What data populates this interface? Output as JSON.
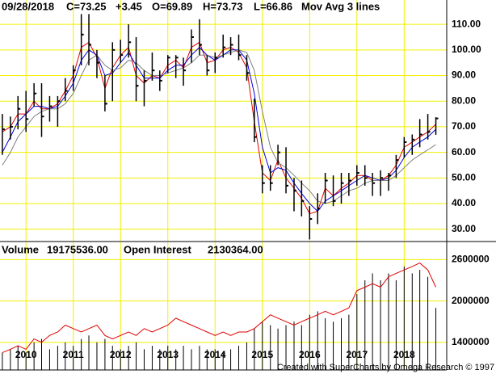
{
  "chart_data": [
    {
      "type": "hlc",
      "date": "09/28/2018",
      "close_label": "C=73.25",
      "change": "+3.45",
      "open_label": "O=69.89",
      "high_label": "H=73.73",
      "low_label": "L=66.86",
      "study": "Mov Avg 3 lines",
      "change_color": "#00c000",
      "bar_color": "#000000",
      "grid": true,
      "grid_color": "#f0f000",
      "x": [
        2009.5,
        2009.67,
        2009.83,
        2010,
        2010.17,
        2010.33,
        2010.5,
        2010.67,
        2010.83,
        2011,
        2011.17,
        2011.33,
        2011.5,
        2011.67,
        2011.83,
        2012,
        2012.17,
        2012.33,
        2012.5,
        2012.67,
        2012.83,
        2013,
        2013.17,
        2013.33,
        2013.5,
        2013.67,
        2013.83,
        2014,
        2014.17,
        2014.33,
        2014.5,
        2014.67,
        2014.83,
        2015,
        2015.17,
        2015.33,
        2015.5,
        2015.67,
        2015.83,
        2016,
        2016.17,
        2016.33,
        2016.5,
        2016.67,
        2016.83,
        2017,
        2017.17,
        2017.33,
        2017.5,
        2017.67,
        2017.83,
        2018,
        2018.17,
        2018.33,
        2018.5,
        2018.67
      ],
      "high": [
        75,
        74,
        82,
        84,
        87,
        87,
        82,
        82,
        89,
        94,
        114,
        114,
        100,
        90,
        103,
        104,
        110,
        105,
        92,
        99,
        92,
        98,
        98,
        97,
        108,
        112,
        98,
        99,
        106,
        105,
        106,
        98,
        81,
        55,
        55,
        63,
        62,
        50,
        49,
        39,
        44,
        52,
        51,
        52,
        52,
        55,
        55,
        52,
        53,
        52,
        59,
        66,
        67,
        73,
        75,
        73.73
      ],
      "low": [
        59,
        65,
        69,
        68,
        78,
        66,
        72,
        70,
        80,
        84,
        94,
        94,
        89,
        76,
        80,
        95,
        97,
        80,
        78,
        88,
        84,
        91,
        89,
        86,
        95,
        98,
        90,
        91,
        97,
        98,
        96,
        88,
        64,
        44,
        45,
        55,
        44,
        37,
        35,
        26,
        32,
        40,
        39,
        40,
        43,
        47,
        47,
        43,
        43,
        45,
        50,
        58,
        59,
        62,
        65,
        66.86
      ],
      "close": [
        69,
        70,
        77,
        73,
        83,
        74,
        78,
        80,
        84,
        92,
        106,
        102,
        95,
        79,
        100,
        98,
        103,
        86,
        88,
        92,
        88,
        97,
        97,
        92,
        105,
        102,
        92,
        97,
        101,
        102,
        98,
        91,
        66,
        48,
        48,
        60,
        47,
        45,
        41,
        34,
        38,
        49,
        41,
        48,
        49,
        52,
        50,
        48,
        50,
        51,
        57,
        64,
        65,
        67,
        68,
        73.25
      ],
      "series": [
        {
          "color": "#e00000",
          "values": [
            68,
            70,
            75,
            75,
            80,
            77,
            77,
            79,
            84,
            90,
            101,
            103,
            97,
            85,
            93,
            98,
            101,
            90,
            87,
            90,
            89,
            94,
            96,
            93,
            101,
            103,
            95,
            96,
            100,
            101,
            99,
            93,
            72,
            52,
            49,
            57,
            50,
            46,
            42,
            36,
            37,
            46,
            43,
            46,
            48,
            51,
            51,
            49,
            49,
            51,
            55,
            62,
            64,
            66,
            68,
            71
          ]
        },
        {
          "color": "#0000e0",
          "values": [
            60,
            66,
            72,
            75,
            78,
            78,
            77,
            78,
            82,
            87,
            96,
            100,
            98,
            90,
            91,
            95,
            99,
            94,
            89,
            89,
            89,
            92,
            94,
            94,
            98,
            101,
            98,
            96,
            98,
            100,
            100,
            96,
            83,
            62,
            52,
            54,
            53,
            48,
            44,
            40,
            37,
            41,
            43,
            45,
            47,
            49,
            51,
            50,
            49,
            50,
            53,
            58,
            62,
            64,
            66,
            69
          ]
        },
        {
          "color": "#808080",
          "values": [
            55,
            60,
            66,
            70,
            74,
            76,
            77,
            77,
            79,
            83,
            90,
            96,
            98,
            94,
            92,
            93,
            96,
            95,
            92,
            90,
            90,
            91,
            92,
            93,
            95,
            98,
            98,
            97,
            98,
            99,
            100,
            99,
            92,
            76,
            62,
            56,
            54,
            51,
            48,
            45,
            41,
            40,
            41,
            43,
            45,
            46,
            48,
            49,
            49,
            49,
            51,
            54,
            57,
            59,
            61,
            63
          ]
        }
      ],
      "xlim": [
        2009.45,
        2018.9
      ],
      "xticks": [
        2010,
        2011,
        2012,
        2013,
        2014,
        2015,
        2016,
        2017,
        2018
      ],
      "ylim": [
        25.5,
        119.5
      ],
      "yticks": [
        {
          "value": 30,
          "label": "30.00"
        },
        {
          "value": 40,
          "label": "40.00"
        },
        {
          "value": 50,
          "label": "50.00"
        },
        {
          "value": 60,
          "label": "60.00"
        },
        {
          "value": 70,
          "label": "70.00"
        },
        {
          "value": 80,
          "label": "80.00"
        },
        {
          "value": 90,
          "label": "90.00"
        },
        {
          "value": 100,
          "label": "100.00"
        },
        {
          "value": 110,
          "label": "110.00"
        }
      ]
    },
    {
      "type": "volume_oi",
      "volume_label": "Volume",
      "volume_value": "19175536.00",
      "oi_label": "Open Interest",
      "oi_value": "2130364.00",
      "oi_value_color": "#e00000",
      "grid": true,
      "grid_color": "#f0f000",
      "x": [
        2009.5,
        2009.67,
        2009.83,
        2010,
        2010.17,
        2010.33,
        2010.5,
        2010.67,
        2010.83,
        2011,
        2011.17,
        2011.33,
        2011.5,
        2011.67,
        2011.83,
        2012,
        2012.17,
        2012.33,
        2012.5,
        2012.67,
        2012.83,
        2013,
        2013.17,
        2013.33,
        2013.5,
        2013.67,
        2013.83,
        2014,
        2014.17,
        2014.33,
        2014.5,
        2014.67,
        2014.83,
        2015,
        2015.17,
        2015.33,
        2015.5,
        2015.67,
        2015.83,
        2016,
        2016.17,
        2016.33,
        2016.5,
        2016.67,
        2016.83,
        2017,
        2017.17,
        2017.33,
        2017.5,
        2017.67,
        2017.83,
        2018,
        2018.17,
        2018.33,
        2018.5,
        2018.67
      ],
      "series": [
        {
          "color": "#000000",
          "values": [
            1250000,
            1300000,
            1350000,
            1250000,
            1400000,
            1450000,
            1300000,
            1350000,
            1400000,
            1350000,
            1450000,
            1500000,
            1400000,
            1450000,
            1350000,
            1300000,
            1350000,
            1400000,
            1300000,
            1350000,
            1300000,
            1350000,
            1300000,
            1350000,
            1300000,
            1350000,
            1300000,
            1300000,
            1250000,
            1300000,
            1350000,
            1400000,
            1600000,
            1700000,
            1650000,
            1600000,
            1650000,
            1700000,
            1650000,
            1800000,
            1850000,
            1750000,
            1700000,
            1750000,
            1800000,
            2100000,
            2300000,
            2400000,
            2300000,
            2400000,
            2300000,
            2500000,
            2400000,
            2450000,
            2350000,
            1900000
          ]
        },
        {
          "color": "#e00000",
          "values": [
            1250000,
            1300000,
            1350000,
            1300000,
            1450000,
            1400000,
            1500000,
            1550000,
            1650000,
            1600000,
            1550000,
            1600000,
            1650000,
            1500000,
            1450000,
            1500000,
            1550000,
            1500000,
            1600000,
            1550000,
            1600000,
            1650000,
            1750000,
            1700000,
            1650000,
            1600000,
            1550000,
            1500000,
            1550000,
            1500000,
            1550000,
            1550000,
            1600000,
            1700000,
            1800000,
            1750000,
            1700000,
            1650000,
            1700000,
            1750000,
            1800000,
            1850000,
            1800000,
            1850000,
            1900000,
            2150000,
            2200000,
            2250000,
            2200000,
            2350000,
            2400000,
            2450000,
            2500000,
            2550000,
            2450000,
            2200000
          ]
        }
      ],
      "xlim": [
        2009.45,
        2018.9
      ],
      "xticks": [
        2010,
        2011,
        2012,
        2013,
        2014,
        2015,
        2016,
        2017,
        2018
      ],
      "ylim": [
        1000000,
        2850000
      ],
      "yticks": [
        1400000,
        2000000,
        2600000
      ]
    }
  ],
  "footer": "Created with SuperCharts by Omega Research © 1997"
}
